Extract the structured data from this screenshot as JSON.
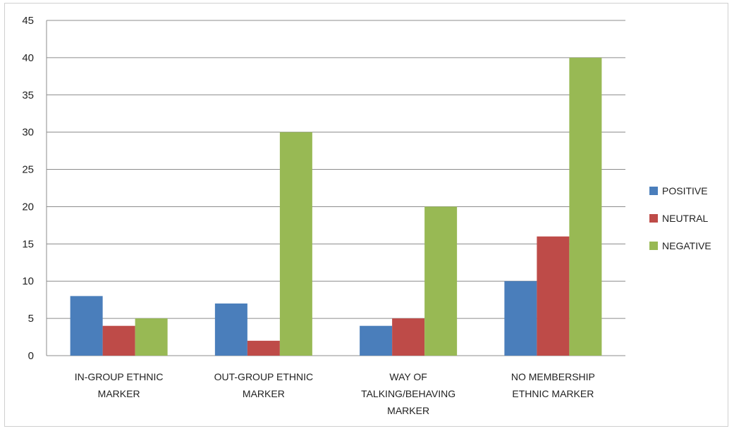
{
  "chart_data": {
    "type": "bar",
    "title": "",
    "xlabel": "",
    "ylabel": "",
    "ylim": [
      0,
      45
    ],
    "yticks": [
      0,
      5,
      10,
      15,
      20,
      25,
      30,
      35,
      40,
      45
    ],
    "grid": true,
    "legend_position": "right",
    "categories": [
      [
        "IN-GROUP  ETHNIC",
        "MARKER"
      ],
      [
        "OUT-GROUP   ETHNIC",
        "MARKER"
      ],
      [
        "WAY OF",
        "TALKING/BEHAVING",
        "MARKER"
      ],
      [
        "NO MEMBERSHIP",
        "ETHNIC MARKER"
      ]
    ],
    "series": [
      {
        "name": "POSITIVE",
        "color": "#4a7ebb",
        "values": [
          8,
          7,
          4,
          10
        ]
      },
      {
        "name": "NEUTRAL",
        "color": "#be4b48",
        "values": [
          4,
          2,
          5,
          16
        ]
      },
      {
        "name": "NEGATIVE",
        "color": "#98b954",
        "values": [
          5,
          30,
          20,
          40
        ]
      }
    ]
  }
}
